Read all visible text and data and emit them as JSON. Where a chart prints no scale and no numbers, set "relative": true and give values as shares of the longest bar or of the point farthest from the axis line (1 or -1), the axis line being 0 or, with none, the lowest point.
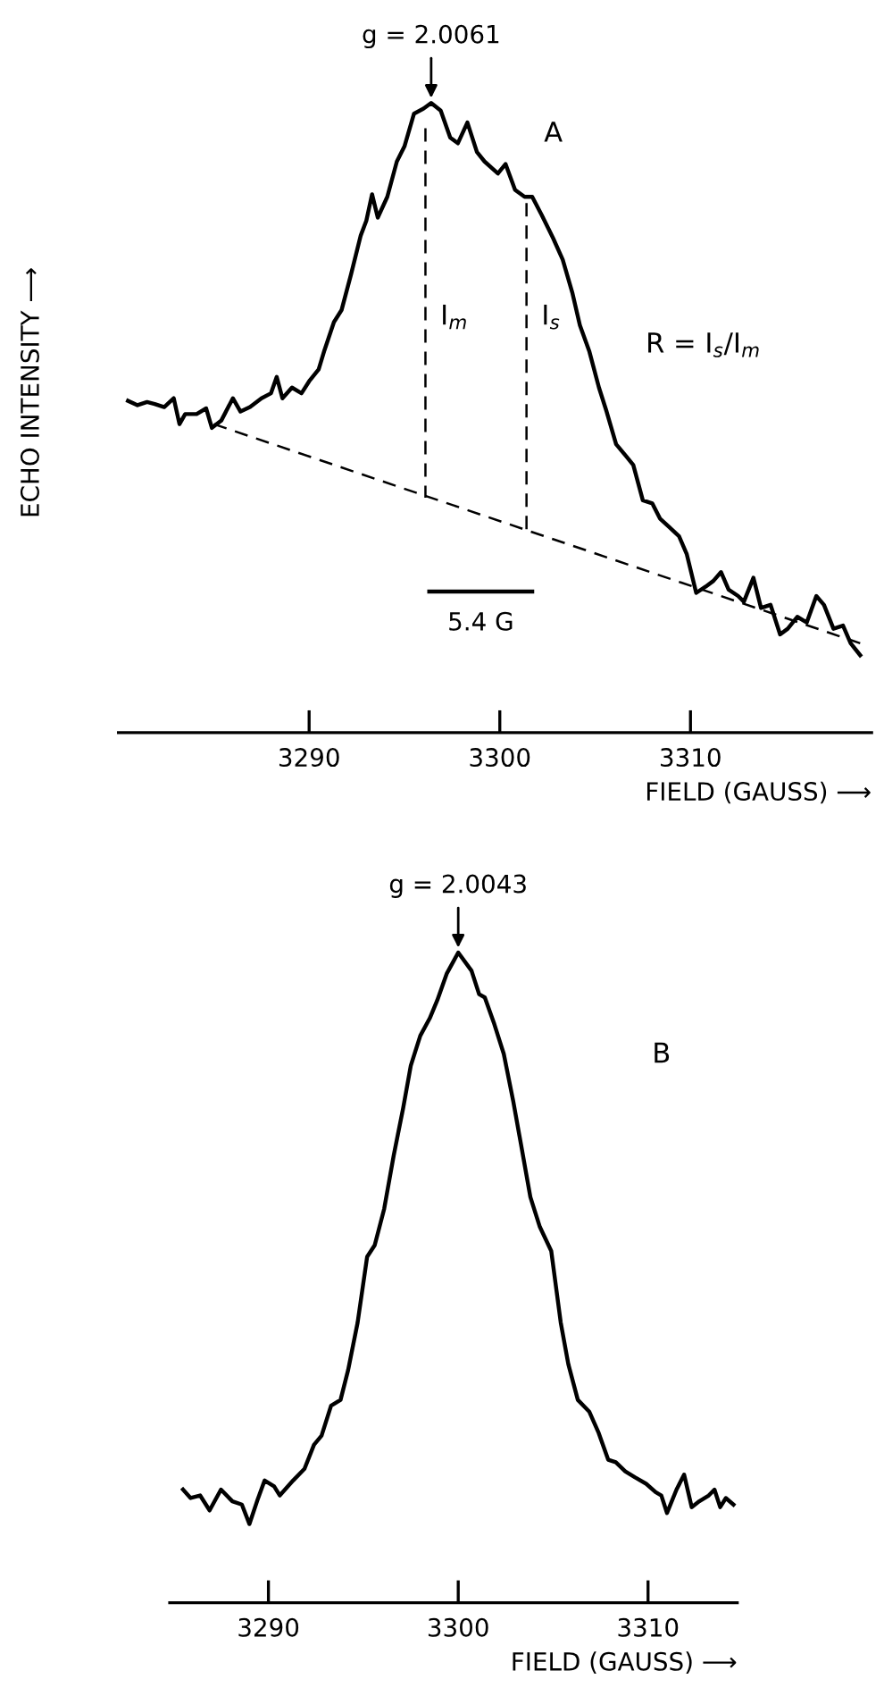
{
  "chart_data": [
    {
      "type": "line",
      "ylabel": "ECHO INTENSITY ⟶",
      "xlabel": "FIELD (GAUSS) ⟶",
      "relative": true,
      "xlim": [
        3280,
        3319.5
      ],
      "xticks": [
        3290,
        3300,
        3310
      ],
      "grid": false,
      "legend": false,
      "marker": "none",
      "series": [
        {
          "color": "#000000",
          "line_style": "solid",
          "x": [
            3280.5,
            3281.0,
            3281.5,
            3281.9,
            3282.4,
            3282.9,
            3283.2,
            3283.5,
            3284.1,
            3284.6,
            3284.9,
            3285.4,
            3286.0,
            3286.4,
            3286.9,
            3287.5,
            3288.0,
            3288.3,
            3288.6,
            3289.1,
            3289.6,
            3290.0,
            3290.5,
            3290.8,
            3291.3,
            3291.7,
            3292.2,
            3292.7,
            3293.0,
            3293.3,
            3293.6,
            3294.1,
            3294.6,
            3295.0,
            3295.5,
            3296.0,
            3296.4,
            3296.9,
            3297.4,
            3297.8,
            3298.3,
            3298.8,
            3299.2,
            3299.9,
            3300.3,
            3300.8,
            3301.3,
            3301.7,
            3302.2,
            3302.8,
            3303.3,
            3303.8,
            3304.2,
            3304.7,
            3305.2,
            3305.6,
            3306.1,
            3306.6,
            3307.0,
            3307.5,
            3308.0,
            3308.4,
            3308.9,
            3309.4,
            3309.8,
            3310.3,
            3310.8,
            3311.2,
            3311.6,
            3312.0,
            3312.5,
            3312.8,
            3313.3,
            3313.7,
            3314.2,
            3314.7,
            3315.1,
            3315.6,
            3316.1,
            3316.6,
            3317.0,
            3317.5,
            3318.0,
            3318.4,
            3318.9
          ],
          "values": [
            0.527,
            0.52,
            0.525,
            0.522,
            0.517,
            0.531,
            0.49,
            0.506,
            0.506,
            0.515,
            0.484,
            0.496,
            0.531,
            0.51,
            0.517,
            0.531,
            0.539,
            0.565,
            0.531,
            0.548,
            0.539,
            0.558,
            0.577,
            0.607,
            0.652,
            0.671,
            0.728,
            0.789,
            0.813,
            0.855,
            0.818,
            0.851,
            0.907,
            0.931,
            0.983,
            0.991,
            1.0,
            0.988,
            0.945,
            0.936,
            0.969,
            0.922,
            0.907,
            0.888,
            0.903,
            0.862,
            0.851,
            0.851,
            0.822,
            0.785,
            0.751,
            0.699,
            0.647,
            0.605,
            0.548,
            0.51,
            0.458,
            0.44,
            0.425,
            0.369,
            0.364,
            0.34,
            0.326,
            0.312,
            0.284,
            0.222,
            0.232,
            0.241,
            0.255,
            0.227,
            0.217,
            0.208,
            0.246,
            0.198,
            0.203,
            0.156,
            0.165,
            0.184,
            0.175,
            0.217,
            0.203,
            0.165,
            0.17,
            0.142,
            0.123
          ]
        },
        {
          "color": "#000000",
          "line_style": "dashed",
          "x": [
            3285.0,
            3318.9
          ],
          "values": [
            0.49,
            0.142
          ]
        },
        {
          "color": "#000000",
          "line_style": "dashed",
          "x": [
            3296.1,
            3296.1
          ],
          "values": [
            0.96,
            0.373
          ]
        },
        {
          "color": "#000000",
          "line_style": "dashed",
          "x": [
            3301.4,
            3301.4
          ],
          "values": [
            0.841,
            0.321
          ]
        },
        {
          "color": "#000000",
          "line_style": "solid",
          "x": [
            3296.3,
            3301.7
          ],
          "values": [
            0.224,
            0.224
          ]
        }
      ],
      "annotations": [
        {
          "text": "g = 2.0061",
          "x": 3296.4,
          "y": 1.0
        },
        {
          "text": "I$_{m}$",
          "x": 3296.1,
          "y": 0.66
        },
        {
          "text": "I$_{s}$",
          "x": 3301.4,
          "y": 0.66
        },
        {
          "text": "5.4 G",
          "x": 3299.0,
          "y": 0.224
        },
        "A",
        "R = I$_{s}$/I$_{m}$"
      ]
    },
    {
      "type": "line",
      "xlabel": "FIELD (GAUSS) ⟶",
      "relative": true,
      "xlim": [
        3284.8,
        3314.7
      ],
      "xticks": [
        3290,
        3300,
        3310
      ],
      "grid": false,
      "legend": false,
      "marker": "none",
      "series": [
        {
          "color": "#000000",
          "line_style": "solid",
          "x": [
            3285.5,
            3285.9,
            3286.4,
            3286.9,
            3287.5,
            3288.1,
            3288.6,
            3289.0,
            3289.4,
            3289.8,
            3290.3,
            3290.6,
            3291.3,
            3291.9,
            3292.4,
            3292.8,
            3293.3,
            3293.8,
            3294.2,
            3294.7,
            3295.2,
            3295.6,
            3296.1,
            3296.6,
            3297.1,
            3297.5,
            3298.0,
            3298.5,
            3298.9,
            3299.4,
            3300.0,
            3300.7,
            3301.1,
            3301.4,
            3301.9,
            3302.4,
            3302.9,
            3303.3,
            3303.8,
            3304.3,
            3304.9,
            3305.4,
            3305.8,
            3306.3,
            3306.9,
            3307.4,
            3307.9,
            3308.3,
            3308.8,
            3309.3,
            3309.9,
            3310.4,
            3310.7,
            3311.0,
            3311.5,
            3311.9,
            3312.3,
            3312.7,
            3313.2,
            3313.5,
            3313.8,
            3314.1,
            3314.5
          ],
          "values": [
            0.174,
            0.161,
            0.165,
            0.142,
            0.174,
            0.156,
            0.151,
            0.121,
            0.156,
            0.188,
            0.179,
            0.165,
            0.188,
            0.206,
            0.243,
            0.257,
            0.303,
            0.312,
            0.358,
            0.431,
            0.532,
            0.55,
            0.606,
            0.688,
            0.761,
            0.826,
            0.872,
            0.899,
            0.927,
            0.968,
            1.0,
            0.972,
            0.936,
            0.931,
            0.89,
            0.844,
            0.771,
            0.706,
            0.624,
            0.578,
            0.541,
            0.431,
            0.367,
            0.312,
            0.294,
            0.261,
            0.22,
            0.216,
            0.202,
            0.193,
            0.183,
            0.17,
            0.165,
            0.138,
            0.174,
            0.197,
            0.147,
            0.156,
            0.165,
            0.174,
            0.147,
            0.161,
            0.151
          ]
        }
      ],
      "annotations": [
        {
          "text": "g = 2.0043",
          "x": 3300.0,
          "y": 1.0
        },
        "B"
      ]
    }
  ]
}
